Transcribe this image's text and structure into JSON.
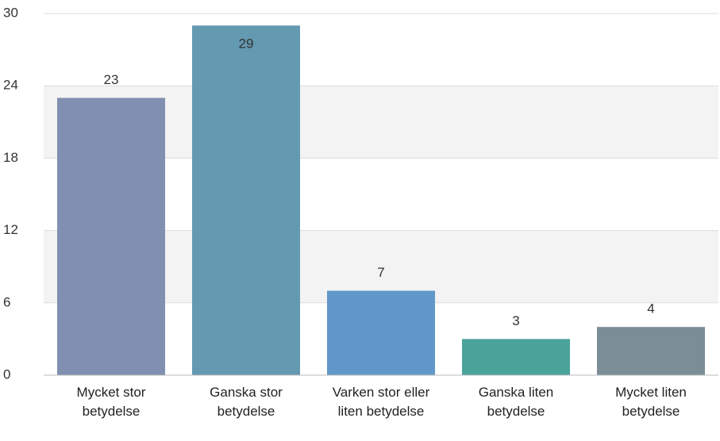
{
  "chart_data": {
    "type": "bar",
    "categories": [
      "Mycket stor betydelse",
      "Ganska stor betydelse",
      "Varken stor eller liten betydelse",
      "Ganska liten betydelse",
      "Mycket liten betydelse"
    ],
    "values": [
      23,
      29,
      7,
      3,
      4
    ],
    "colors": [
      "#8190b1",
      "#6399b1",
      "#6198c9",
      "#4aa39b",
      "#7b8e96"
    ],
    "ylim": [
      0,
      30
    ],
    "yticks": [
      0,
      6,
      12,
      18,
      24,
      30
    ],
    "grid": true
  }
}
